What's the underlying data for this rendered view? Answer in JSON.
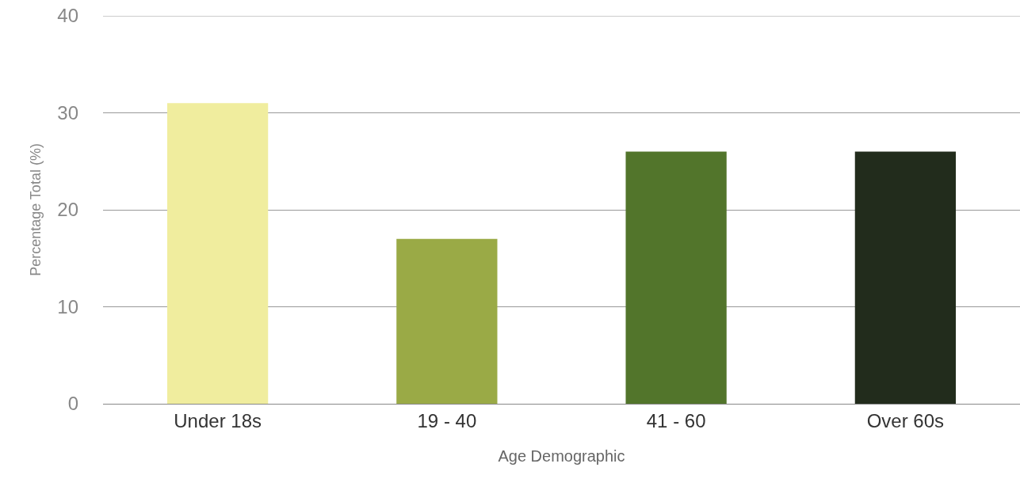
{
  "chart_data": {
    "type": "bar",
    "xlabel": "Age Demographic",
    "ylabel": "Percentage Total (%)",
    "categories": [
      "Under 18s",
      "19 - 40",
      "41 - 60",
      "Over 60s"
    ],
    "values": [
      31,
      17,
      26,
      26
    ],
    "colors": [
      "#f0ed9e",
      "#9aaa46",
      "#52752b",
      "#222c1c"
    ],
    "ylim": [
      0,
      40
    ],
    "yticks": [
      0,
      10,
      20,
      30,
      40
    ],
    "grid": "y"
  }
}
